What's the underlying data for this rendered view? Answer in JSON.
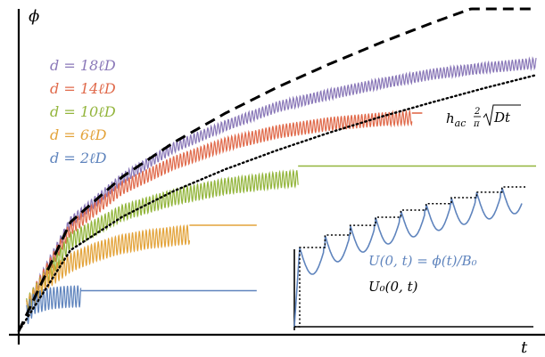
{
  "chart_data": {
    "type": "line",
    "title": "",
    "xlabel": "t",
    "ylabel": "ϕ",
    "legend_placement": "top-left",
    "grid": false,
    "axis_ranges": {
      "t": [
        0,
        10
      ],
      "phi": [
        0,
        10
      ]
    },
    "series": [
      {
        "name": "d = 18ℓD",
        "color": "#8a78b8",
        "plateau": 9.3,
        "osc_end": 10.0,
        "x": [
          0.15,
          1,
          2,
          3,
          4,
          5,
          6,
          7,
          8,
          9,
          10
        ],
        "y": [
          0.8,
          3.5,
          4.9,
          5.9,
          6.6,
          7.2,
          7.6,
          7.95,
          8.25,
          8.45,
          8.6
        ]
      },
      {
        "name": "d = 14ℓD",
        "color": "#e06a4b",
        "plateau": 7.0,
        "osc_end": 7.6,
        "x": [
          0.15,
          1,
          2,
          3,
          4,
          5,
          6,
          7,
          7.6
        ],
        "y": [
          0.8,
          3.3,
          4.6,
          5.4,
          6.0,
          6.4,
          6.65,
          6.8,
          6.85
        ]
      },
      {
        "name": "d = 10ℓD",
        "color": "#93b53c",
        "plateau": 5.3,
        "osc_end": 5.4,
        "x": [
          0.15,
          1,
          2,
          3,
          4,
          5,
          5.4
        ],
        "y": [
          0.8,
          2.9,
          3.8,
          4.3,
          4.65,
          4.85,
          4.9
        ]
      },
      {
        "name": "d = 6ℓD",
        "color": "#e3a33a",
        "plateau": 3.4,
        "osc_end": 3.3,
        "x": [
          0.15,
          0.5,
          1,
          1.5,
          2,
          2.5,
          3,
          3.3
        ],
        "y": [
          0.7,
          1.6,
          2.2,
          2.55,
          2.8,
          2.95,
          3.05,
          3.1
        ]
      },
      {
        "name": "d = 2ℓD",
        "color": "#5f84bd",
        "plateau": 1.3,
        "osc_end": 1.2,
        "x": [
          0.15,
          0.3,
          0.6,
          0.9,
          1.2
        ],
        "y": [
          0.5,
          0.9,
          1.05,
          1.1,
          1.12
        ]
      }
    ],
    "reference_curves": [
      {
        "label": "dashed envelope",
        "style": "dashed",
        "x": [
          0,
          1,
          2,
          3,
          4,
          5,
          6,
          7,
          8,
          9,
          10
        ],
        "y": [
          0,
          3.5,
          4.95,
          6.06,
          7.0,
          7.83,
          8.57,
          9.26,
          9.9,
          10.5,
          11.07
        ]
      },
      {
        "label": "h_ac (2/π)√(Dt)",
        "style": "dotted",
        "x": [
          0,
          1,
          2,
          3,
          4,
          5,
          6,
          7,
          8,
          9,
          10
        ],
        "y": [
          0,
          2.6,
          3.67,
          4.5,
          5.2,
          5.81,
          6.37,
          6.88,
          7.35,
          7.8,
          8.22
        ]
      }
    ],
    "annotations": [
      "h_ac (2/π)√(Dt)"
    ],
    "inset": {
      "label_U": "U(0, t) = ϕ(t)/B₀",
      "label_U0": "U₀(0, t)",
      "U_color": "#5f84bd",
      "U0_color": "#000000",
      "description_levels": 7
    }
  }
}
